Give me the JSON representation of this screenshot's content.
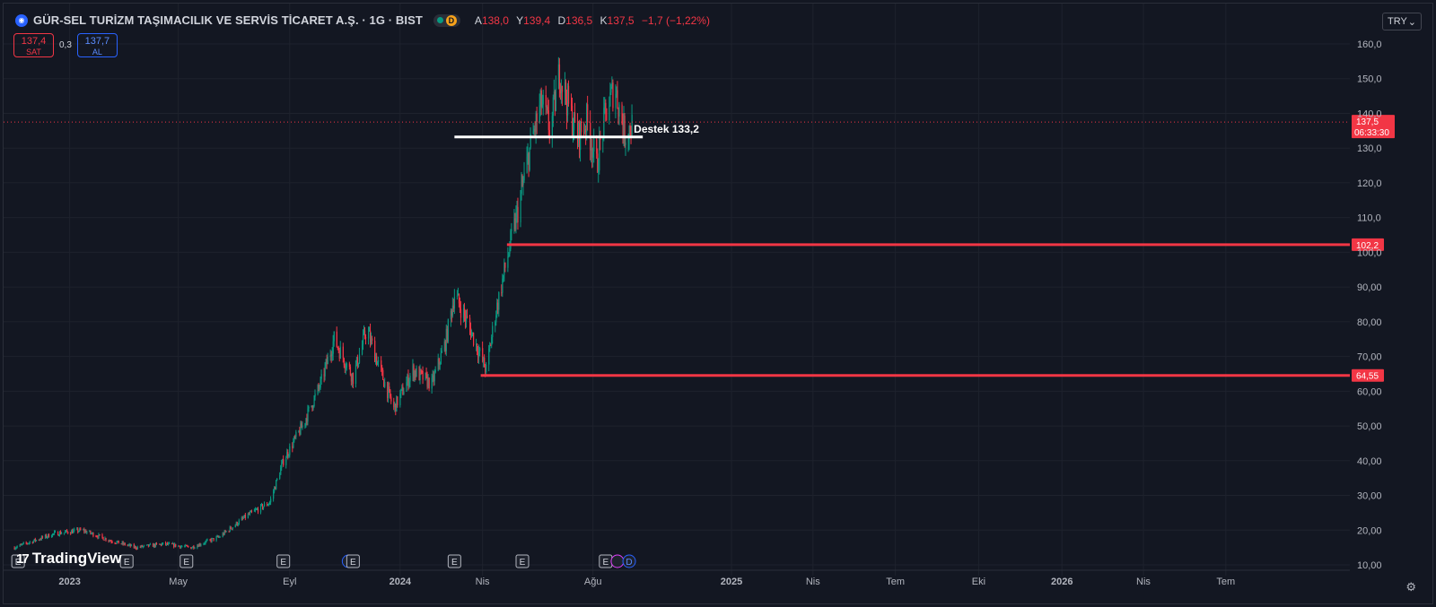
{
  "header": {
    "title": "GÜR-SEL TURİZM TAŞIMACILIK VE SERVİS TİCARET A.Ş. · 1G · BIST",
    "status_letter": "D",
    "ohlc": [
      {
        "key": "A",
        "value": "138,0"
      },
      {
        "key": "Y",
        "value": "139,4"
      },
      {
        "key": "D",
        "value": "136,5"
      },
      {
        "key": "K",
        "value": "137,5"
      }
    ],
    "change": "−1,7 (−1,22%)"
  },
  "trade": {
    "sell_price": "137,4",
    "sell_label": "SAT",
    "spread": "0,3",
    "buy_price": "137,7",
    "buy_label": "AL"
  },
  "currency": {
    "label": "TRY",
    "caret": "⌄"
  },
  "branding": {
    "text": "TradingView",
    "mark": "17"
  },
  "colors": {
    "up": "#089981",
    "down": "#f23645",
    "bg": "#131722",
    "grid": "#1e222d",
    "accent": "#2962ff"
  },
  "chart_data": {
    "type": "candlestick",
    "yticks": [
      "10,00",
      "20,00",
      "30,00",
      "40,00",
      "50,00",
      "60,00",
      "70,00",
      "80,00",
      "90,00",
      "100,0",
      "110,0",
      "120,0",
      "130,0",
      "140,0",
      "150,0",
      "160,0"
    ],
    "ylim": [
      10,
      160
    ],
    "xticks": [
      {
        "label": "2023",
        "date": "2023-01-01",
        "bold": true
      },
      {
        "label": "May",
        "date": "2023-05-01",
        "bold": false
      },
      {
        "label": "Eyl",
        "date": "2023-09-01",
        "bold": false
      },
      {
        "label": "2024",
        "date": "2024-01-01",
        "bold": true
      },
      {
        "label": "Nis",
        "date": "2024-04-01",
        "bold": false
      },
      {
        "label": "Ağu",
        "date": "2024-08-01",
        "bold": false
      },
      {
        "label": "2025",
        "date": "2025-01-01",
        "bold": true
      },
      {
        "label": "Nis",
        "date": "2025-04-01",
        "bold": false
      },
      {
        "label": "Tem",
        "date": "2025-07-01",
        "bold": false
      },
      {
        "label": "Eki",
        "date": "2025-10-01",
        "bold": false
      },
      {
        "label": "2026",
        "date": "2026-01-01",
        "bold": true
      },
      {
        "label": "Nis",
        "date": "2026-04-01",
        "bold": false
      },
      {
        "label": "Tem",
        "date": "2026-07-01",
        "bold": false
      }
    ],
    "xlim": [
      "2022-10-20",
      "2026-11-15"
    ],
    "grid": true,
    "price_path": [
      {
        "date": "2022-11-01",
        "value": 15
      },
      {
        "date": "2022-12-15",
        "value": 19
      },
      {
        "date": "2023-01-15",
        "value": 20
      },
      {
        "date": "2023-02-15",
        "value": 17
      },
      {
        "date": "2023-03-15",
        "value": 15
      },
      {
        "date": "2023-04-15",
        "value": 16
      },
      {
        "date": "2023-05-15",
        "value": 15
      },
      {
        "date": "2023-06-15",
        "value": 18
      },
      {
        "date": "2023-07-15",
        "value": 24
      },
      {
        "date": "2023-08-10",
        "value": 28
      },
      {
        "date": "2023-08-25",
        "value": 40
      },
      {
        "date": "2023-09-15",
        "value": 50
      },
      {
        "date": "2023-10-05",
        "value": 62
      },
      {
        "date": "2023-10-20",
        "value": 75
      },
      {
        "date": "2023-11-10",
        "value": 64
      },
      {
        "date": "2023-11-25",
        "value": 78
      },
      {
        "date": "2023-12-10",
        "value": 66
      },
      {
        "date": "2023-12-25",
        "value": 55
      },
      {
        "date": "2024-01-15",
        "value": 66
      },
      {
        "date": "2024-02-05",
        "value": 62
      },
      {
        "date": "2024-02-20",
        "value": 74
      },
      {
        "date": "2024-03-01",
        "value": 88
      },
      {
        "date": "2024-03-15",
        "value": 80
      },
      {
        "date": "2024-03-30",
        "value": 70
      },
      {
        "date": "2024-04-05",
        "value": 66
      },
      {
        "date": "2024-04-15",
        "value": 82
      },
      {
        "date": "2024-04-28",
        "value": 98
      },
      {
        "date": "2024-05-10",
        "value": 112
      },
      {
        "date": "2024-05-25",
        "value": 132
      },
      {
        "date": "2024-06-05",
        "value": 143
      },
      {
        "date": "2024-06-15",
        "value": 135
      },
      {
        "date": "2024-06-25",
        "value": 152
      },
      {
        "date": "2024-07-05",
        "value": 142
      },
      {
        "date": "2024-07-15",
        "value": 133
      },
      {
        "date": "2024-07-25",
        "value": 138
      },
      {
        "date": "2024-08-05",
        "value": 125
      },
      {
        "date": "2024-08-15",
        "value": 140
      },
      {
        "date": "2024-08-25",
        "value": 148
      },
      {
        "date": "2024-09-05",
        "value": 134
      },
      {
        "date": "2024-09-15",
        "value": 137.5
      }
    ],
    "horizontal_levels": [
      {
        "value": 102.2,
        "start": "2024-04-28",
        "label": "102,2",
        "color": "#f23645"
      },
      {
        "value": 64.55,
        "start": "2024-03-30",
        "label": "64,55",
        "color": "#f23645"
      }
    ],
    "support_segment": {
      "value": 133.2,
      "start": "2024-03-01",
      "end": "2024-09-25",
      "label": "Destek 133,2",
      "color": "#ffffff"
    },
    "last_price": {
      "value": 137.5,
      "label": "137,5",
      "countdown": "06:33:30",
      "color": "#f23645"
    },
    "events": [
      {
        "date": "2022-11-05",
        "letter": "E",
        "type": "earnings"
      },
      {
        "date": "2023-03-05",
        "letter": "E",
        "type": "earnings"
      },
      {
        "date": "2023-05-10",
        "letter": "E",
        "type": "earnings"
      },
      {
        "date": "2023-08-25",
        "letter": "E",
        "type": "earnings"
      },
      {
        "date": "2023-11-05",
        "letter": "",
        "type": "split"
      },
      {
        "date": "2023-11-10",
        "letter": "E",
        "type": "earnings"
      },
      {
        "date": "2024-03-01",
        "letter": "E",
        "type": "earnings"
      },
      {
        "date": "2024-05-15",
        "letter": "E",
        "type": "earnings"
      },
      {
        "date": "2024-08-15",
        "letter": "E",
        "type": "earnings"
      },
      {
        "date": "2024-08-28",
        "letter": "",
        "type": "split"
      },
      {
        "date": "2024-09-10",
        "letter": "D",
        "type": "dividend"
      }
    ]
  }
}
